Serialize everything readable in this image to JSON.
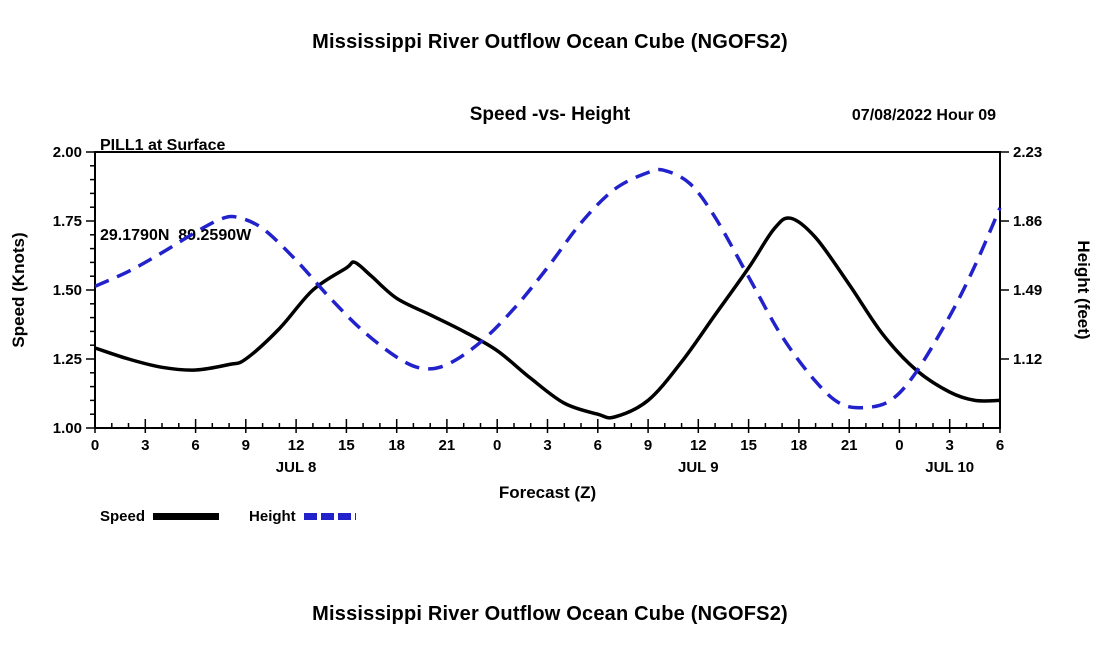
{
  "titles": {
    "top": "Mississippi River Outflow Ocean Cube (NGOFS2)",
    "bottom": "Mississippi River Outflow Ocean Cube (NGOFS2)"
  },
  "header": {
    "station": "PILL1 at Surface",
    "coordinates": "29.1790N  89.2590W",
    "chart_title": "Speed -vs- Height",
    "run_datetime": "07/08/2022 Hour 09"
  },
  "legend": {
    "speed_label": "Speed",
    "height_label": "Height"
  },
  "colors": {
    "speed": "#000000",
    "height": "#2222cc",
    "axis": "#000000"
  },
  "chart_data": {
    "type": "line",
    "title": "Speed -vs- Height",
    "xlabel": "Forecast (Z)",
    "ylabel_left": "Speed (Knots)",
    "ylabel_right": "Height (feet)",
    "x_range": [
      0,
      54
    ],
    "x_minor_step": 1,
    "x_ticks": [
      {
        "hour": 0,
        "label": "0"
      },
      {
        "hour": 3,
        "label": "3"
      },
      {
        "hour": 6,
        "label": "6"
      },
      {
        "hour": 9,
        "label": "9"
      },
      {
        "hour": 12,
        "label": "12"
      },
      {
        "hour": 15,
        "label": "15"
      },
      {
        "hour": 18,
        "label": "18"
      },
      {
        "hour": 21,
        "label": "21"
      },
      {
        "hour": 24,
        "label": "0"
      },
      {
        "hour": 27,
        "label": "3"
      },
      {
        "hour": 30,
        "label": "6"
      },
      {
        "hour": 33,
        "label": "9"
      },
      {
        "hour": 36,
        "label": "12"
      },
      {
        "hour": 39,
        "label": "15"
      },
      {
        "hour": 42,
        "label": "18"
      },
      {
        "hour": 45,
        "label": "21"
      },
      {
        "hour": 48,
        "label": "0"
      },
      {
        "hour": 51,
        "label": "3"
      },
      {
        "hour": 54,
        "label": "6"
      }
    ],
    "date_labels": [
      {
        "label": "JUL 8",
        "hour": 12
      },
      {
        "label": "JUL 9",
        "hour": 36
      },
      {
        "label": "JUL 10",
        "hour": 51
      }
    ],
    "left_axis": {
      "min": 1.0,
      "max": 2.0,
      "minor_step": 0.05,
      "tick_values": [
        1.0,
        1.25,
        1.5,
        1.75,
        2.0
      ],
      "tick_labels": [
        "1.00",
        "1.25",
        "1.50",
        "1.75",
        "2.00"
      ]
    },
    "right_axis": {
      "min": 0.75,
      "max": 2.23,
      "tick_values": [
        1.12,
        1.49,
        1.86,
        2.23
      ],
      "tick_labels": [
        "1.12",
        "1.49",
        "1.86",
        "2.23"
      ]
    },
    "series": [
      {
        "name": "Speed",
        "axis": "left",
        "color": "#000000",
        "dash": "solid",
        "points": [
          [
            0,
            1.29
          ],
          [
            2,
            1.25
          ],
          [
            4,
            1.22
          ],
          [
            6,
            1.21
          ],
          [
            8,
            1.23
          ],
          [
            9,
            1.25
          ],
          [
            11,
            1.36
          ],
          [
            13,
            1.5
          ],
          [
            15,
            1.58
          ],
          [
            15.5,
            1.6
          ],
          [
            16.5,
            1.55
          ],
          [
            18,
            1.47
          ],
          [
            20,
            1.41
          ],
          [
            22,
            1.35
          ],
          [
            24,
            1.28
          ],
          [
            26,
            1.18
          ],
          [
            28,
            1.09
          ],
          [
            30,
            1.05
          ],
          [
            31,
            1.04
          ],
          [
            33,
            1.1
          ],
          [
            35,
            1.24
          ],
          [
            37,
            1.41
          ],
          [
            39,
            1.58
          ],
          [
            40.5,
            1.72
          ],
          [
            41.5,
            1.76
          ],
          [
            43,
            1.69
          ],
          [
            45,
            1.52
          ],
          [
            47,
            1.34
          ],
          [
            49,
            1.21
          ],
          [
            51,
            1.13
          ],
          [
            52.5,
            1.1
          ],
          [
            54,
            1.1
          ]
        ]
      },
      {
        "name": "Height",
        "axis": "right",
        "color": "#2222cc",
        "dash": "dashed",
        "points": [
          [
            0,
            1.51
          ],
          [
            2,
            1.59
          ],
          [
            4,
            1.69
          ],
          [
            6,
            1.8
          ],
          [
            7.5,
            1.87
          ],
          [
            8.5,
            1.88
          ],
          [
            10,
            1.82
          ],
          [
            12,
            1.65
          ],
          [
            14,
            1.45
          ],
          [
            16,
            1.27
          ],
          [
            18,
            1.13
          ],
          [
            19.5,
            1.07
          ],
          [
            21,
            1.09
          ],
          [
            23,
            1.21
          ],
          [
            25,
            1.39
          ],
          [
            27,
            1.61
          ],
          [
            29,
            1.85
          ],
          [
            31,
            2.03
          ],
          [
            33,
            2.12
          ],
          [
            34,
            2.13
          ],
          [
            35.5,
            2.06
          ],
          [
            37,
            1.88
          ],
          [
            39,
            1.56
          ],
          [
            41,
            1.24
          ],
          [
            43,
            1.0
          ],
          [
            44.5,
            0.88
          ],
          [
            46,
            0.86
          ],
          [
            47.5,
            0.9
          ],
          [
            49,
            1.05
          ],
          [
            51,
            1.35
          ],
          [
            52.5,
            1.62
          ],
          [
            54,
            1.93
          ]
        ]
      }
    ]
  }
}
